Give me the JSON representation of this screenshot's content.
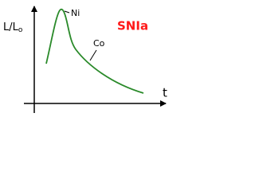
{
  "title": "SNIa",
  "y_axis_label": {
    "main": "L/L",
    "subscript": "o"
  },
  "x_axis_label": "t",
  "annotations": {
    "peak": "Ni",
    "tail": "Co"
  }
}
